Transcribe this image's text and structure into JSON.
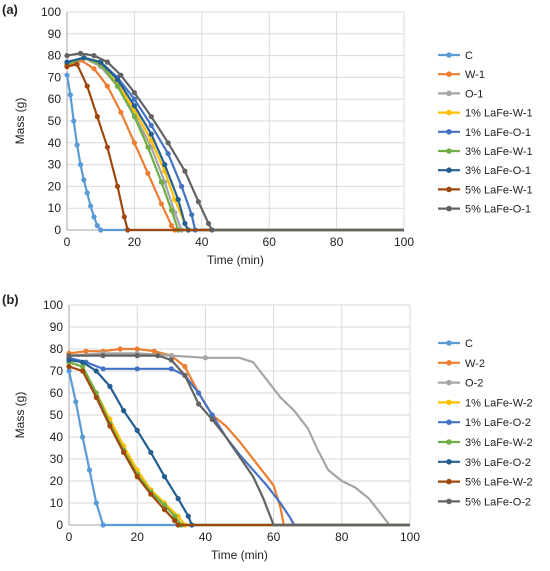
{
  "chart_data": [
    {
      "type": "line",
      "panel_label": "(a)",
      "xlabel": "Time (min)",
      "ylabel": "Mass (g)",
      "xlim": [
        0,
        100
      ],
      "ylim": [
        0,
        100
      ],
      "xticks": [
        0,
        20,
        40,
        60,
        80,
        100
      ],
      "yticks": [
        0,
        10,
        20,
        30,
        40,
        50,
        60,
        70,
        80,
        90,
        100
      ],
      "grid": true,
      "legend": "right",
      "series": [
        {
          "name": "C",
          "color": "#5b9bd5",
          "points": [
            [
              0,
              71
            ],
            [
              1,
              62
            ],
            [
              2,
              50
            ],
            [
              3,
              39
            ],
            [
              4,
              30
            ],
            [
              5,
              23
            ],
            [
              6,
              17
            ],
            [
              7,
              11
            ],
            [
              8,
              6
            ],
            [
              9,
              2
            ],
            [
              10,
              0
            ],
            [
              100,
              0
            ]
          ]
        },
        {
          "name": "W-1",
          "color": "#ed7d31",
          "points": [
            [
              0,
              75
            ],
            [
              4,
              78
            ],
            [
              8,
              74
            ],
            [
              12,
              66
            ],
            [
              16,
              54
            ],
            [
              20,
              40
            ],
            [
              24,
              26
            ],
            [
              28,
              12
            ],
            [
              31,
              2
            ],
            [
              32,
              0
            ],
            [
              100,
              0
            ]
          ]
        },
        {
          "name": "O-1",
          "color": "#a5a5a5",
          "points": [
            [
              0,
              76
            ],
            [
              5,
              79
            ],
            [
              10,
              75
            ],
            [
              15,
              66
            ],
            [
              20,
              53
            ],
            [
              25,
              38
            ],
            [
              29,
              22
            ],
            [
              32,
              8
            ],
            [
              34,
              0
            ],
            [
              100,
              0
            ]
          ]
        },
        {
          "name": "1% LaFe-W-1",
          "color": "#ffc000",
          "points": [
            [
              0,
              76
            ],
            [
              5,
              79
            ],
            [
              10,
              76
            ],
            [
              15,
              67
            ],
            [
              20,
              55
            ],
            [
              25,
              41
            ],
            [
              29,
              27
            ],
            [
              32,
              14
            ],
            [
              35,
              3
            ],
            [
              36,
              0
            ],
            [
              100,
              0
            ]
          ]
        },
        {
          "name": "1% LaFe-O-1",
          "color": "#4472c4",
          "points": [
            [
              0,
              77
            ],
            [
              5,
              79
            ],
            [
              10,
              77
            ],
            [
              15,
              70
            ],
            [
              20,
              60
            ],
            [
              25,
              48
            ],
            [
              30,
              35
            ],
            [
              34,
              20
            ],
            [
              37,
              7
            ],
            [
              38,
              0
            ],
            [
              100,
              0
            ]
          ]
        },
        {
          "name": "3% LaFe-W-1",
          "color": "#70ad47",
          "points": [
            [
              0,
              76
            ],
            [
              5,
              79
            ],
            [
              10,
              76
            ],
            [
              15,
              66
            ],
            [
              20,
              52
            ],
            [
              24,
              38
            ],
            [
              28,
              22
            ],
            [
              31,
              9
            ],
            [
              33,
              0
            ],
            [
              100,
              0
            ]
          ]
        },
        {
          "name": "3% LaFe-O-1",
          "color": "#255e91",
          "points": [
            [
              0,
              77
            ],
            [
              5,
              79
            ],
            [
              10,
              77
            ],
            [
              15,
              69
            ],
            [
              20,
              57
            ],
            [
              25,
              44
            ],
            [
              29,
              30
            ],
            [
              33,
              14
            ],
            [
              35,
              3
            ],
            [
              36,
              0
            ],
            [
              100,
              0
            ]
          ]
        },
        {
          "name": "5% LaFe-W-1",
          "color": "#9e480e",
          "points": [
            [
              0,
              75
            ],
            [
              3,
              76
            ],
            [
              6,
              66
            ],
            [
              9,
              52
            ],
            [
              12,
              38
            ],
            [
              15,
              20
            ],
            [
              17,
              6
            ],
            [
              18,
              0
            ],
            [
              100,
              0
            ]
          ]
        },
        {
          "name": "5% LaFe-O-1",
          "color": "#636363",
          "points": [
            [
              0,
              80
            ],
            [
              4,
              81
            ],
            [
              8,
              80
            ],
            [
              12,
              77
            ],
            [
              16,
              71
            ],
            [
              20,
              63
            ],
            [
              25,
              52
            ],
            [
              30,
              40
            ],
            [
              35,
              27
            ],
            [
              39,
              13
            ],
            [
              42,
              3
            ],
            [
              43,
              0
            ],
            [
              100,
              0
            ]
          ]
        }
      ]
    },
    {
      "type": "line",
      "panel_label": "(b)",
      "xlabel": "Time (min)",
      "ylabel": "Mass (g)",
      "xlim": [
        0,
        100
      ],
      "ylim": [
        0,
        100
      ],
      "xticks": [
        0,
        20,
        40,
        60,
        80,
        100
      ],
      "yticks": [
        0,
        10,
        20,
        30,
        40,
        50,
        60,
        70,
        80,
        90,
        100
      ],
      "grid": true,
      "legend": "right",
      "series": [
        {
          "name": "C",
          "color": "#5b9bd5",
          "points": [
            [
              0,
              70
            ],
            [
              2,
              56
            ],
            [
              4,
              40
            ],
            [
              6,
              25
            ],
            [
              8,
              10
            ],
            [
              10,
              0
            ],
            [
              100,
              0
            ]
          ]
        },
        {
          "name": "W-2",
          "color": "#ed7d31",
          "points": [
            [
              0,
              78
            ],
            [
              5,
              79
            ],
            [
              10,
              79
            ],
            [
              15,
              80
            ],
            [
              20,
              80
            ],
            [
              25,
              79
            ],
            [
              30,
              77
            ],
            [
              34,
              72
            ],
            [
              38,
              60
            ],
            [
              42,
              50
            ],
            [
              46,
              45
            ],
            [
              50,
              38
            ],
            [
              54,
              30
            ],
            [
              58,
              22
            ],
            [
              60,
              18
            ],
            [
              62,
              8
            ],
            [
              63,
              0
            ],
            [
              100,
              0
            ]
          ]
        },
        {
          "name": "O-2",
          "color": "#a5a5a5",
          "points": [
            [
              0,
              77
            ],
            [
              10,
              78
            ],
            [
              20,
              78
            ],
            [
              30,
              77
            ],
            [
              40,
              76
            ],
            [
              50,
              76
            ],
            [
              54,
              74
            ],
            [
              58,
              66
            ],
            [
              62,
              58
            ],
            [
              66,
              52
            ],
            [
              70,
              44
            ],
            [
              73,
              34
            ],
            [
              76,
              25
            ],
            [
              80,
              20
            ],
            [
              84,
              17
            ],
            [
              88,
              12
            ],
            [
              92,
              4
            ],
            [
              94,
              0
            ],
            [
              100,
              0
            ]
          ]
        },
        {
          "name": "1% LaFe-W-2",
          "color": "#ffc000",
          "points": [
            [
              0,
              74
            ],
            [
              4,
              72
            ],
            [
              8,
              60
            ],
            [
              12,
              48
            ],
            [
              16,
              36
            ],
            [
              20,
              25
            ],
            [
              24,
              16
            ],
            [
              28,
              10
            ],
            [
              32,
              4
            ],
            [
              34,
              0
            ],
            [
              100,
              0
            ]
          ]
        },
        {
          "name": "1% LaFe-O-2",
          "color": "#4472c4",
          "points": [
            [
              0,
              76
            ],
            [
              5,
              74
            ],
            [
              10,
              71
            ],
            [
              20,
              71
            ],
            [
              30,
              71
            ],
            [
              34,
              68
            ],
            [
              38,
              60
            ],
            [
              42,
              50
            ],
            [
              46,
              40
            ],
            [
              50,
              32
            ],
            [
              54,
              25
            ],
            [
              58,
              18
            ],
            [
              62,
              10
            ],
            [
              65,
              3
            ],
            [
              66,
              0
            ],
            [
              100,
              0
            ]
          ]
        },
        {
          "name": "3% LaFe-W-2",
          "color": "#70ad47",
          "points": [
            [
              0,
              74
            ],
            [
              4,
              72
            ],
            [
              8,
              60
            ],
            [
              12,
              46
            ],
            [
              16,
              34
            ],
            [
              20,
              23
            ],
            [
              24,
              15
            ],
            [
              28,
              9
            ],
            [
              31,
              4
            ],
            [
              33,
              0
            ],
            [
              100,
              0
            ]
          ]
        },
        {
          "name": "3% LaFe-O-2",
          "color": "#255e91",
          "points": [
            [
              0,
              75
            ],
            [
              4,
              74
            ],
            [
              8,
              70
            ],
            [
              12,
              63
            ],
            [
              16,
              52
            ],
            [
              20,
              43
            ],
            [
              24,
              33
            ],
            [
              28,
              22
            ],
            [
              32,
              12
            ],
            [
              35,
              4
            ],
            [
              36,
              0
            ],
            [
              100,
              0
            ]
          ]
        },
        {
          "name": "5% LaFe-W-2",
          "color": "#9e480e",
          "points": [
            [
              0,
              72
            ],
            [
              4,
              70
            ],
            [
              8,
              58
            ],
            [
              12,
              45
            ],
            [
              16,
              33
            ],
            [
              20,
              22
            ],
            [
              24,
              14
            ],
            [
              28,
              7
            ],
            [
              31,
              2
            ],
            [
              32,
              0
            ],
            [
              100,
              0
            ]
          ]
        },
        {
          "name": "5% LaFe-O-2",
          "color": "#636363",
          "points": [
            [
              0,
              77
            ],
            [
              10,
              77
            ],
            [
              20,
              77
            ],
            [
              26,
              77
            ],
            [
              30,
              75
            ],
            [
              34,
              68
            ],
            [
              38,
              55
            ],
            [
              42,
              48
            ],
            [
              46,
              40
            ],
            [
              50,
              31
            ],
            [
              54,
              22
            ],
            [
              57,
              12
            ],
            [
              59,
              4
            ],
            [
              60,
              0
            ],
            [
              100,
              0
            ]
          ]
        }
      ]
    }
  ]
}
